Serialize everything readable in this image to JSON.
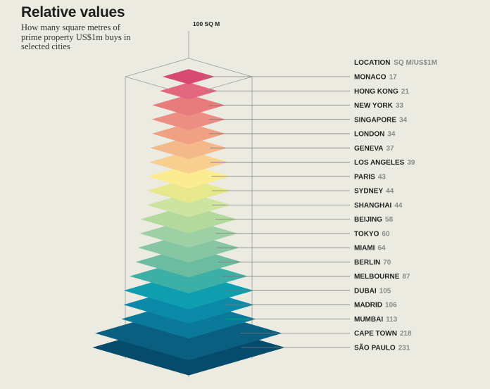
{
  "title": "Relative values",
  "subtitle": "How many square metres of prime property US$1m buys in selected cities",
  "reference_label": "100 SQ M",
  "header": {
    "location": "LOCATION",
    "unit": "SQ M/US$1M"
  },
  "chart_data": {
    "type": "bar",
    "title": "Relative values",
    "subtitle": "How many square metres of prime property US$1m buys in selected cities",
    "reference": {
      "label": "100 SQ M",
      "value": 100
    },
    "categories": [
      "MONACO",
      "HONG KONG",
      "NEW YORK",
      "SINGAPORE",
      "LONDON",
      "GENEVA",
      "LOS ANGELES",
      "PARIS",
      "SYDNEY",
      "SHANGHAI",
      "BEIJING",
      "TOKYO",
      "MIAMI",
      "BERLIN",
      "MELBOURNE",
      "DUBAI",
      "MADRID",
      "MUMBAI",
      "CAPE TOWN",
      "SÃO PAULO"
    ],
    "values": [
      17,
      21,
      33,
      34,
      34,
      37,
      39,
      43,
      44,
      44,
      58,
      60,
      64,
      70,
      87,
      105,
      106,
      113,
      218,
      231
    ],
    "colors": [
      "#d94a72",
      "#e3677d",
      "#e87b7c",
      "#ec8e84",
      "#f0a183",
      "#f4b98a",
      "#f8cf8f",
      "#fbeb91",
      "#e7e88b",
      "#cde4a0",
      "#b3d99d",
      "#9dd0a4",
      "#86c6a3",
      "#6cbca2",
      "#3cafa7",
      "#0f9eb0",
      "#0a8aa8",
      "#0b7a9a",
      "#0a5e80",
      "#074b6c"
    ],
    "grid": false,
    "legend": "none"
  }
}
